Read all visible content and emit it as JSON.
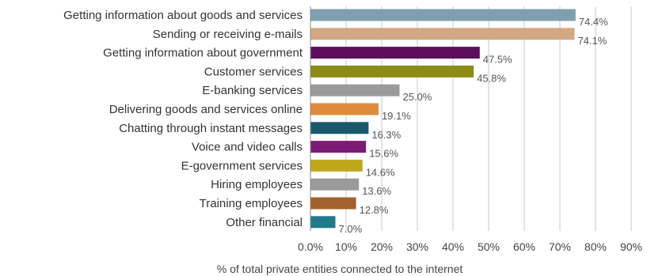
{
  "chart_data": {
    "type": "bar",
    "orientation": "horizontal",
    "categories": [
      "Getting information about goods and services",
      "Sending or receiving e-mails",
      "Getting information about government",
      "Customer services",
      "E-banking services",
      "Delivering goods and services online",
      "Chatting through instant messages",
      "Voice and video calls",
      "E-government services",
      "Hiring employees",
      "Training employees",
      "Other financial"
    ],
    "values": [
      74.4,
      74.1,
      47.5,
      45.8,
      25.0,
      19.1,
      16.3,
      15.6,
      14.6,
      13.6,
      12.8,
      7.0
    ],
    "value_labels": [
      "74.4%",
      "74.1%",
      "47.5%",
      "45.8%",
      "25.0%",
      "19.1%",
      "16.3%",
      "15.6%",
      "14.6%",
      "13.6%",
      "12.8%",
      "7.0%"
    ],
    "colors": [
      "#7f9fb1",
      "#d3a884",
      "#5c0f5a",
      "#8e8a16",
      "#9a9a9a",
      "#de8b3e",
      "#18586a",
      "#7a1c74",
      "#bfa81c",
      "#9a9a9a",
      "#a3622b",
      "#1f7a8c"
    ],
    "xlabel": "% of total private entities connected to the internet",
    "xlim": [
      0,
      90
    ],
    "xticks": [
      "0.0%",
      "10%",
      "20%",
      "30%",
      "40%",
      "50%",
      "60%",
      "70%",
      "80%",
      "90%"
    ],
    "grid": true
  }
}
